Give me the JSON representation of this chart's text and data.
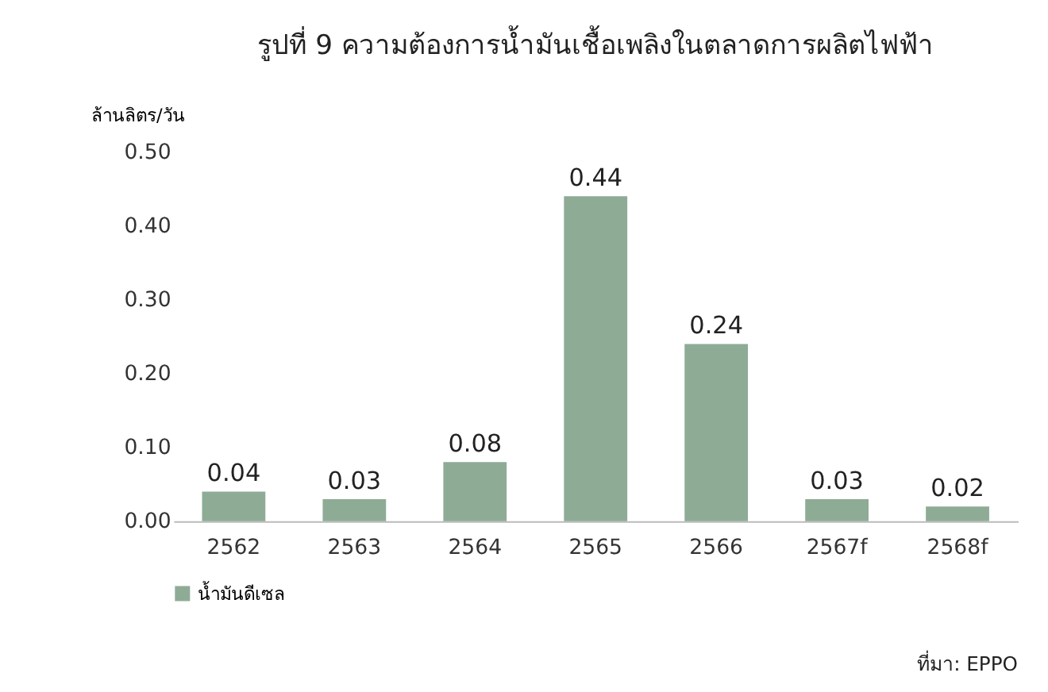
{
  "chart_data": {
    "type": "bar",
    "title": "รูปที่ 9 ความต้องการน้ำมันเชื้อเพลิงในตลาดการผลิตไฟฟ้า",
    "ylabel": "ล้านลิตร/วัน",
    "categories": [
      "2562",
      "2563",
      "2564",
      "2565",
      "2566",
      "2567f",
      "2568f"
    ],
    "series": [
      {
        "name": "น้ำมันดีเซล",
        "color": "#8eab96",
        "values": [
          0.04,
          0.03,
          0.08,
          0.44,
          0.24,
          0.03,
          0.02
        ]
      }
    ],
    "ylim": [
      0,
      0.5
    ],
    "yticks": [
      {
        "value": 0,
        "label": "0.00"
      },
      {
        "value": 0.1,
        "label": "0.10"
      },
      {
        "value": 0.2,
        "label": "0.20"
      },
      {
        "value": 0.3,
        "label": "0.30"
      },
      {
        "value": 0.4,
        "label": "0.40"
      },
      {
        "value": 0.5,
        "label": "0.50"
      }
    ],
    "data_labels": true,
    "grid": false,
    "legend": "bottom",
    "annotations": [
      "ที่มา: EPPO"
    ]
  }
}
